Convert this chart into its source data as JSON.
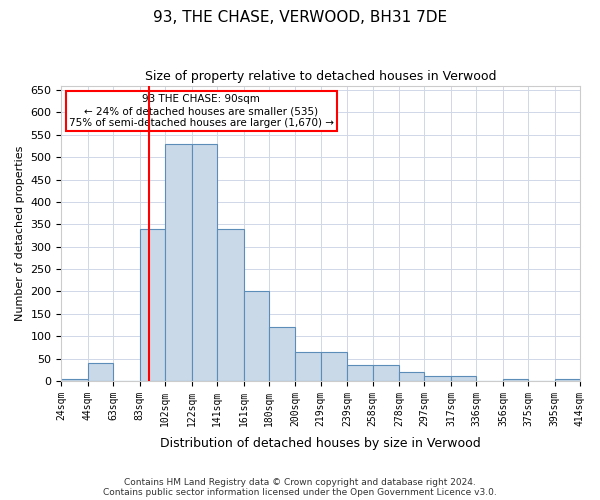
{
  "title": "93, THE CHASE, VERWOOD, BH31 7DE",
  "subtitle": "Size of property relative to detached houses in Verwood",
  "xlabel": "Distribution of detached houses by size in Verwood",
  "ylabel": "Number of detached properties",
  "footer_line1": "Contains HM Land Registry data © Crown copyright and database right 2024.",
  "footer_line2": "Contains public sector information licensed under the Open Government Licence v3.0.",
  "annotation_line1": "93 THE CHASE: 90sqm",
  "annotation_line2": "← 24% of detached houses are smaller (535)",
  "annotation_line3": "75% of semi-detached houses are larger (1,670) →",
  "bar_color": "#c9d9e8",
  "bar_edge_color": "#5b8db8",
  "redline_x": 90,
  "bin_edges": [
    24,
    44,
    63,
    83,
    102,
    122,
    141,
    161,
    180,
    200,
    219,
    239,
    258,
    278,
    297,
    317,
    336,
    356,
    375,
    395,
    414
  ],
  "bar_heights": [
    5,
    40,
    0,
    340,
    530,
    530,
    340,
    200,
    120,
    65,
    65,
    35,
    35,
    20,
    10,
    10,
    0,
    5,
    0,
    5
  ],
  "ylim": [
    0,
    660
  ],
  "yticks": [
    0,
    50,
    100,
    150,
    200,
    250,
    300,
    350,
    400,
    450,
    500,
    550,
    600,
    650
  ]
}
